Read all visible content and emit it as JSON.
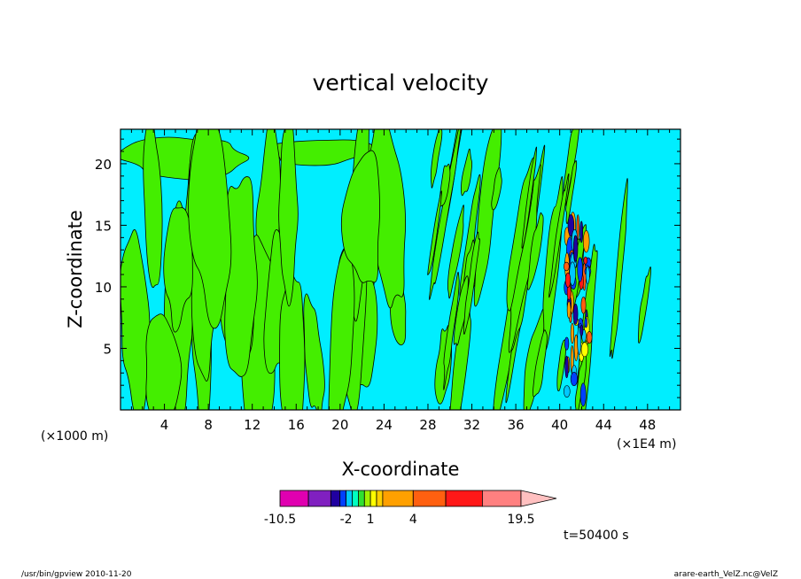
{
  "chart_data": {
    "type": "heatmap",
    "title": "vertical velocity",
    "xlabel": "X-coordinate",
    "ylabel": "Z-coordinate",
    "x_unit_left": "(×1000 m)",
    "x_unit_right": "(×1E4 m)",
    "xlim": [
      0,
      51
    ],
    "ylim": [
      0,
      22.8
    ],
    "x_ticks": [
      4,
      8,
      12,
      16,
      20,
      24,
      28,
      32,
      36,
      40,
      44,
      48
    ],
    "y_ticks": [
      5,
      10,
      15,
      20
    ],
    "colorbar": {
      "levels": [
        -10.5,
        -7.5,
        -4.5,
        -3,
        -2,
        -1,
        0,
        0.5,
        1,
        1.5,
        2,
        4,
        7.5,
        11.5,
        15.5,
        19.5
      ],
      "colors": [
        "#e000b0",
        "#8020c0",
        "#2000a0",
        "#0040ff",
        "#00c8ff",
        "#00ffc0",
        "#30e030",
        "#a0f000",
        "#ffff00",
        "#ffd000",
        "#ffa000",
        "#ff6010",
        "#ff1818",
        "#ff8080",
        "#ffc0c0"
      ],
      "labels": [
        "-10.5",
        "-2",
        "1",
        "4",
        "19.5"
      ],
      "label_values": [
        -10.5,
        -2,
        1,
        4,
        19.5
      ]
    },
    "time_label": "t=50400 s",
    "background_color": "#00eeff",
    "updraft_color": "#44ee00"
  },
  "footer": {
    "left": "/usr/bin/gpview  2010-11-20",
    "right": "arare-earth_VelZ.nc@VelZ"
  }
}
